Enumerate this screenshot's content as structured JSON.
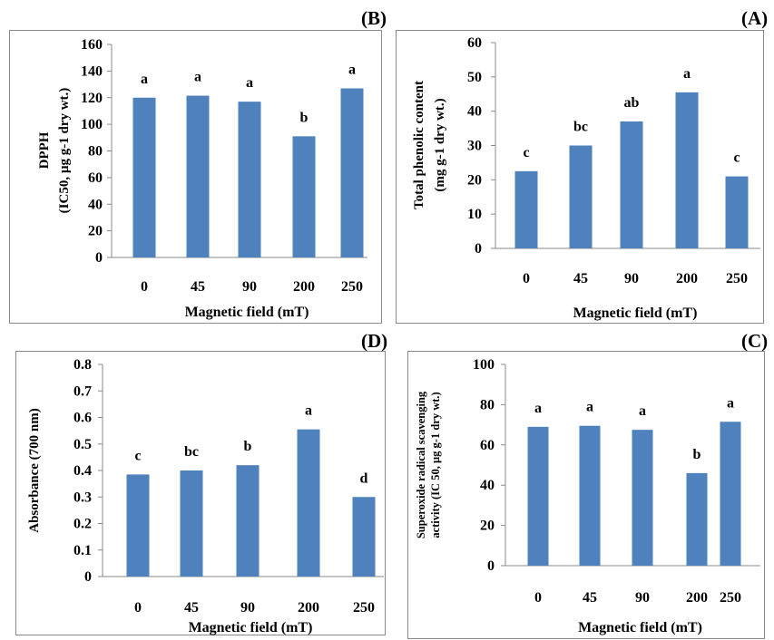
{
  "chart_data": [
    {
      "type": "bar",
      "panel": "(B)",
      "categories": [
        "0",
        "45",
        "90",
        "200",
        "250"
      ],
      "values": [
        120,
        121.5,
        117,
        91,
        127
      ],
      "letters": [
        "a",
        "a",
        "a",
        "b",
        "a"
      ],
      "ylim": [
        0,
        160
      ],
      "yticks": [
        "0",
        "20",
        "40",
        "60",
        "80",
        "100",
        "120",
        "140",
        "160"
      ],
      "ylabel_lines": [
        "DPPH",
        "(IC50, µg g-1 dry wt.)"
      ],
      "xlabel": "Magnetic field (mT)",
      "color": "#4f81bd",
      "grid": false
    },
    {
      "type": "bar",
      "panel": "(A)",
      "categories": [
        "0",
        "45",
        "90",
        "200",
        "250"
      ],
      "values": [
        22.5,
        30,
        37,
        45.5,
        21
      ],
      "letters": [
        "c",
        "bc",
        "ab",
        "a",
        "c"
      ],
      "ylim": [
        0,
        60
      ],
      "yticks": [
        "0",
        "10",
        "20",
        "30",
        "40",
        "50",
        "60"
      ],
      "ylabel_lines": [
        "Total phenolic content",
        "(mg g-1 dry wt.)"
      ],
      "xlabel": "Magnetic field (mT)",
      "color": "#4f81bd",
      "grid": false
    },
    {
      "type": "bar",
      "panel": "(D)",
      "categories": [
        "0",
        "45",
        "90",
        "200",
        "250"
      ],
      "values": [
        0.385,
        0.4,
        0.42,
        0.555,
        0.3
      ],
      "letters": [
        "c",
        "bc",
        "b",
        "a",
        "d"
      ],
      "ylim": [
        0,
        0.8
      ],
      "yticks": [
        "0",
        "0.1",
        "0.2",
        "0.3",
        "0.4",
        "0.5",
        "0.6",
        "0.7",
        "0.8"
      ],
      "ylabel_lines": [
        "Absorbance (700 nm)"
      ],
      "xlabel": "Magnetic field (mT)",
      "color": "#4f81bd",
      "grid": false
    },
    {
      "type": "bar",
      "panel": "(C)",
      "categories": [
        "0",
        "45",
        "90",
        "200",
        "250"
      ],
      "values": [
        69,
        69.5,
        67.5,
        46,
        71.5
      ],
      "letters": [
        "a",
        "a",
        "a",
        "b",
        "a"
      ],
      "ylim": [
        0,
        100
      ],
      "yticks": [
        "0",
        "20",
        "40",
        "60",
        "80",
        "100"
      ],
      "ylabel_lines": [
        "Superoxide radical scavenging",
        "activity (IC 50, µg g-1 dry wt.)"
      ],
      "xlabel": "Magnetic field (mT)",
      "color": "#4f81bd",
      "grid": false
    }
  ]
}
